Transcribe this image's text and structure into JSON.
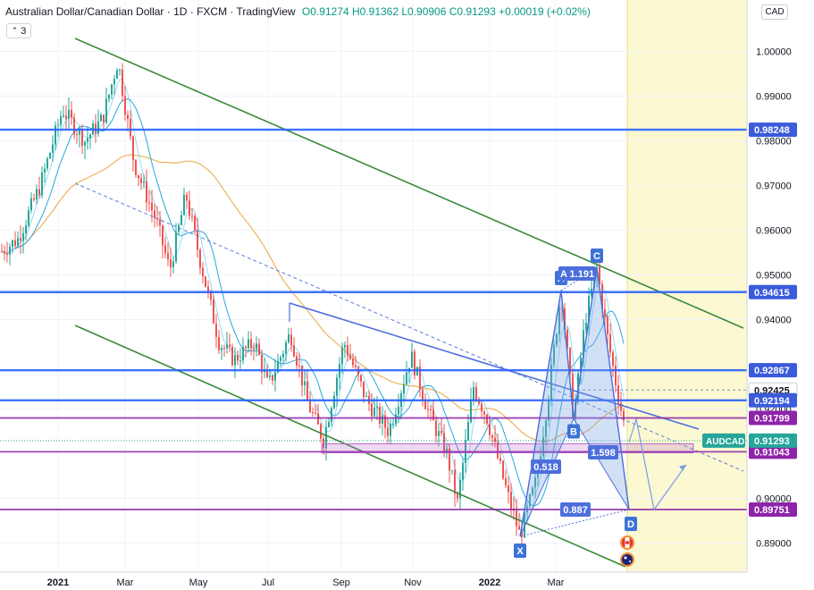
{
  "header": {
    "title": "Australian Dollar/Canadian Dollar · 1D · FXCM · TradingView",
    "ohlc": "O0.91274 H0.91362 L0.90906 C0.91293 +0.00019 (+0.02%)"
  },
  "indicator_toggle": "3",
  "currency": "CAD",
  "colors": {
    "channel": "#3a8a3a",
    "level_blue": "#2962ff",
    "level_purple": "#8e24aa",
    "up_candle": "#26a69a",
    "down_candle": "#ef5350",
    "ma_fast": "#26a7de",
    "ma_slow": "#f0b35a",
    "harmonic_fill": "#7ea6e6",
    "forecast_zone": "#fbf8d2"
  },
  "chart_data": {
    "type": "candlestick",
    "symbol": "AUDCAD",
    "x_tick_labels": [
      "2021",
      "Mar",
      "May",
      "Jul",
      "Sep",
      "Nov",
      "2022",
      "Mar"
    ],
    "y_tick_labels": [
      "1.00000",
      "0.99000",
      "0.98000",
      "0.97000",
      "0.96000",
      "0.95000",
      "0.94000",
      "0.92000",
      "0.90000",
      "0.89000"
    ],
    "ylim": [
      0.8835,
      1.0115
    ],
    "last_price": {
      "label": "AUDCAD",
      "value": "0.91293"
    },
    "price_levels": [
      {
        "value": 0.98248,
        "label": "0.98248",
        "kind": "blue"
      },
      {
        "value": 0.94615,
        "label": "0.94615",
        "kind": "blue"
      },
      {
        "value": 0.92867,
        "label": "0.92867",
        "kind": "blue"
      },
      {
        "value": 0.92425,
        "label": "0.92425",
        "kind": "dashed"
      },
      {
        "value": 0.92194,
        "label": "0.92194",
        "kind": "blue"
      },
      {
        "value": 0.91799,
        "label": "0.91799",
        "kind": "purple"
      },
      {
        "value": 0.91043,
        "label": "0.91043",
        "kind": "purple"
      },
      {
        "value": 0.89751,
        "label": "0.89751",
        "kind": "purple"
      }
    ],
    "pattern_points": [
      {
        "label": "X",
        "value": 0.8915
      },
      {
        "label": "A",
        "value": 0.9465
      },
      {
        "label": "B",
        "value": 0.9178
      },
      {
        "label": "C",
        "value": 0.9515
      },
      {
        "label": "D",
        "value": 0.8975
      }
    ],
    "ratio_labels": [
      "A 1.191",
      "0.518",
      "1.598",
      "0.887"
    ]
  }
}
